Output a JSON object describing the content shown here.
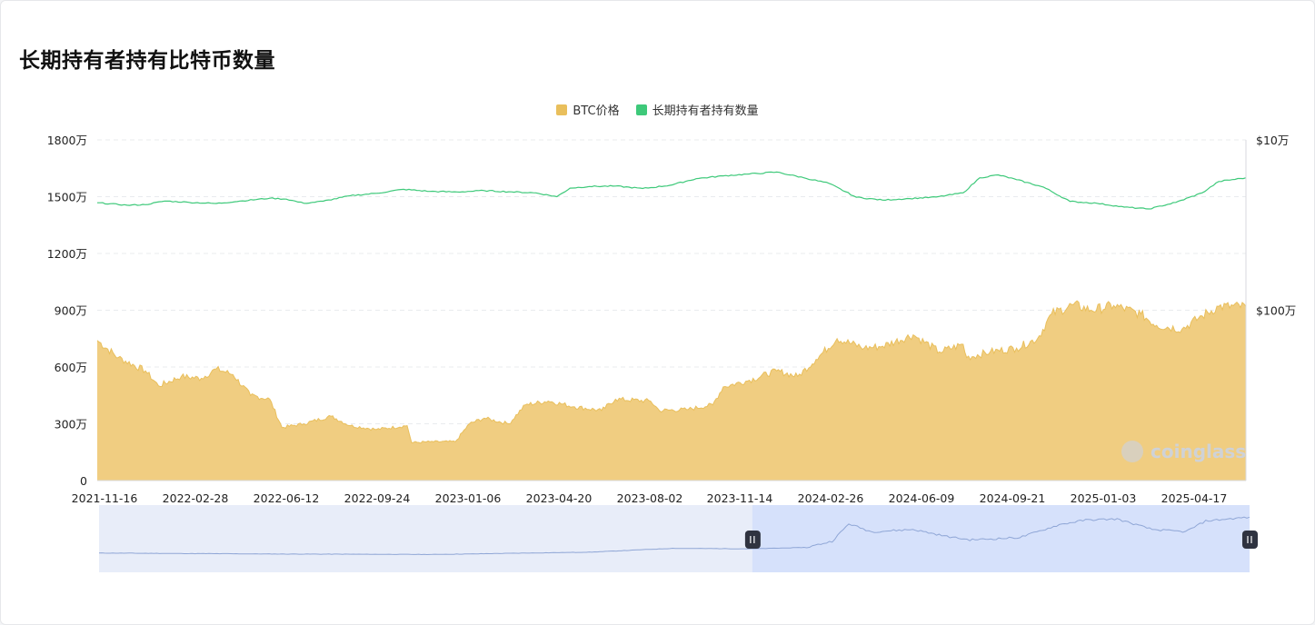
{
  "title": "长期持有者持有比特币数量",
  "colors": {
    "price": "#e9bf5c",
    "price_fill": "#f0cd81",
    "holders": "#3ec97a",
    "zoom_line": "#8fa6d6",
    "zoom_fill": "#e8edf9",
    "zoom_selected": "#d6e1fb",
    "handle": "#2f3340"
  },
  "legend": [
    {
      "label": "BTC价格",
      "color": "#e9bf5c",
      "icon": "square-swatch"
    },
    {
      "label": "长期持有者持有数量",
      "color": "#3ec97a",
      "icon": "square-swatch"
    }
  ],
  "watermark": "coinglass",
  "chart_data": {
    "type": "area",
    "x_ticks": [
      "2021-11-16",
      "2022-02-28",
      "2022-06-12",
      "2022-09-24",
      "2023-01-06",
      "2023-04-20",
      "2023-08-02",
      "2023-11-14",
      "2024-02-26",
      "2024-06-09",
      "2024-09-21",
      "2025-01-03",
      "2025-04-17"
    ],
    "x_range": [
      "2021-11-16",
      "2025-06-20"
    ],
    "y_left": {
      "ticks": [
        "0",
        "300万",
        "600万",
        "900万",
        "1200万",
        "1500万",
        "1800万"
      ],
      "range": [
        0,
        18000000
      ]
    },
    "y_right": {
      "ticks": [
        "$10万",
        "$100万"
      ],
      "scale": "log"
    },
    "grid": "horizontal dashed",
    "legend_position": "top-center",
    "series": [
      {
        "name": "长期持有者持有数量",
        "type": "line",
        "axis": "left",
        "points": [
          [
            "2021-11-16",
            14680000
          ],
          [
            "2021-12-20",
            14550000
          ],
          [
            "2022-01-10",
            14580000
          ],
          [
            "2022-02-01",
            14770000
          ],
          [
            "2022-03-01",
            14700000
          ],
          [
            "2022-04-01",
            14640000
          ],
          [
            "2022-05-01",
            14780000
          ],
          [
            "2022-06-01",
            14920000
          ],
          [
            "2022-06-20",
            14870000
          ],
          [
            "2022-07-10",
            14650000
          ],
          [
            "2022-08-01",
            14760000
          ],
          [
            "2022-09-01",
            15050000
          ],
          [
            "2022-10-01",
            15180000
          ],
          [
            "2022-11-01",
            15390000
          ],
          [
            "2022-12-01",
            15280000
          ],
          [
            "2023-01-01",
            15250000
          ],
          [
            "2023-02-01",
            15320000
          ],
          [
            "2023-03-01",
            15260000
          ],
          [
            "2023-04-01",
            15200000
          ],
          [
            "2023-04-25",
            15000000
          ],
          [
            "2023-05-10",
            15450000
          ],
          [
            "2023-06-01",
            15540000
          ],
          [
            "2023-07-01",
            15560000
          ],
          [
            "2023-08-01",
            15430000
          ],
          [
            "2023-09-01",
            15600000
          ],
          [
            "2023-10-01",
            15950000
          ],
          [
            "2023-11-01",
            16100000
          ],
          [
            "2023-12-01",
            16200000
          ],
          [
            "2024-01-01",
            16300000
          ],
          [
            "2024-02-01",
            16000000
          ],
          [
            "2024-03-01",
            15700000
          ],
          [
            "2024-04-01",
            14970000
          ],
          [
            "2024-05-01",
            14820000
          ],
          [
            "2024-06-01",
            14900000
          ],
          [
            "2024-07-01",
            14980000
          ],
          [
            "2024-08-01",
            15200000
          ],
          [
            "2024-08-20",
            16000000
          ],
          [
            "2024-09-10",
            16150000
          ],
          [
            "2024-10-01",
            15900000
          ],
          [
            "2024-11-01",
            15500000
          ],
          [
            "2024-12-01",
            14750000
          ],
          [
            "2025-01-01",
            14650000
          ],
          [
            "2025-02-01",
            14450000
          ],
          [
            "2025-03-01",
            14350000
          ],
          [
            "2025-04-01",
            14700000
          ],
          [
            "2025-05-01",
            15200000
          ],
          [
            "2025-05-20",
            15800000
          ],
          [
            "2025-06-20",
            16000000
          ]
        ]
      },
      {
        "name": "BTC价格",
        "type": "area",
        "axis": "left",
        "points": [
          [
            "2021-11-16",
            7400000
          ],
          [
            "2021-12-10",
            6500000
          ],
          [
            "2022-01-10",
            5800000
          ],
          [
            "2022-01-25",
            5000000
          ],
          [
            "2022-02-20",
            5500000
          ],
          [
            "2022-03-15",
            5400000
          ],
          [
            "2022-04-01",
            5900000
          ],
          [
            "2022-04-20",
            5600000
          ],
          [
            "2022-05-10",
            4500000
          ],
          [
            "2022-06-01",
            4300000
          ],
          [
            "2022-06-15",
            2800000
          ],
          [
            "2022-07-10",
            3000000
          ],
          [
            "2022-08-10",
            3400000
          ],
          [
            "2022-09-01",
            2900000
          ],
          [
            "2022-10-01",
            2700000
          ],
          [
            "2022-11-05",
            2900000
          ],
          [
            "2022-11-10",
            2000000
          ],
          [
            "2022-12-01",
            2050000
          ],
          [
            "2022-12-30",
            2050000
          ],
          [
            "2023-01-15",
            3000000
          ],
          [
            "2023-02-01",
            3300000
          ],
          [
            "2023-03-01",
            3000000
          ],
          [
            "2023-03-20",
            4000000
          ],
          [
            "2023-04-15",
            4200000
          ],
          [
            "2023-05-15",
            3900000
          ],
          [
            "2023-06-15",
            3700000
          ],
          [
            "2023-07-01",
            4300000
          ],
          [
            "2023-08-10",
            4200000
          ],
          [
            "2023-08-20",
            3700000
          ],
          [
            "2023-09-20",
            3750000
          ],
          [
            "2023-10-20",
            4000000
          ],
          [
            "2023-11-01",
            4950000
          ],
          [
            "2023-12-01",
            5300000
          ],
          [
            "2024-01-01",
            5800000
          ],
          [
            "2024-01-25",
            5500000
          ],
          [
            "2024-02-15",
            6400000
          ],
          [
            "2024-03-10",
            7500000
          ],
          [
            "2024-04-10",
            7000000
          ],
          [
            "2024-05-01",
            7100000
          ],
          [
            "2024-06-05",
            7700000
          ],
          [
            "2024-07-05",
            6800000
          ],
          [
            "2024-08-01",
            7200000
          ],
          [
            "2024-08-05",
            6500000
          ],
          [
            "2024-09-01",
            6800000
          ],
          [
            "2024-10-01",
            7000000
          ],
          [
            "2024-10-25",
            7500000
          ],
          [
            "2024-11-10",
            8800000
          ],
          [
            "2024-12-05",
            9300000
          ],
          [
            "2024-12-25",
            9000000
          ],
          [
            "2025-01-20",
            9250000
          ],
          [
            "2025-02-20",
            8800000
          ],
          [
            "2025-03-10",
            8200000
          ],
          [
            "2025-04-08",
            8000000
          ],
          [
            "2025-05-01",
            8700000
          ],
          [
            "2025-05-20",
            9200000
          ],
          [
            "2025-06-20",
            9200000
          ]
        ]
      },
      {
        "name": "zoom-overview",
        "type": "line",
        "points": [
          [
            "2021-11-16",
            0.1
          ],
          [
            "2022-06-01",
            0.08
          ],
          [
            "2022-12-01",
            0.07
          ],
          [
            "2023-06-01",
            0.12
          ],
          [
            "2023-09-01",
            0.2
          ],
          [
            "2023-12-01",
            0.19
          ],
          [
            "2024-02-01",
            0.22
          ],
          [
            "2024-03-01",
            0.35
          ],
          [
            "2024-03-20",
            0.72
          ],
          [
            "2024-04-15",
            0.55
          ],
          [
            "2024-06-01",
            0.6
          ],
          [
            "2024-07-10",
            0.45
          ],
          [
            "2024-08-05",
            0.38
          ],
          [
            "2024-09-01",
            0.4
          ],
          [
            "2024-10-01",
            0.43
          ],
          [
            "2024-11-15",
            0.7
          ],
          [
            "2024-12-15",
            0.8
          ],
          [
            "2025-01-20",
            0.82
          ],
          [
            "2025-03-01",
            0.6
          ],
          [
            "2025-04-08",
            0.55
          ],
          [
            "2025-05-01",
            0.78
          ],
          [
            "2025-06-20",
            0.86
          ]
        ]
      }
    ],
    "zoom_window": {
      "start": "2023-12-01",
      "end": "2025-06-20"
    }
  }
}
